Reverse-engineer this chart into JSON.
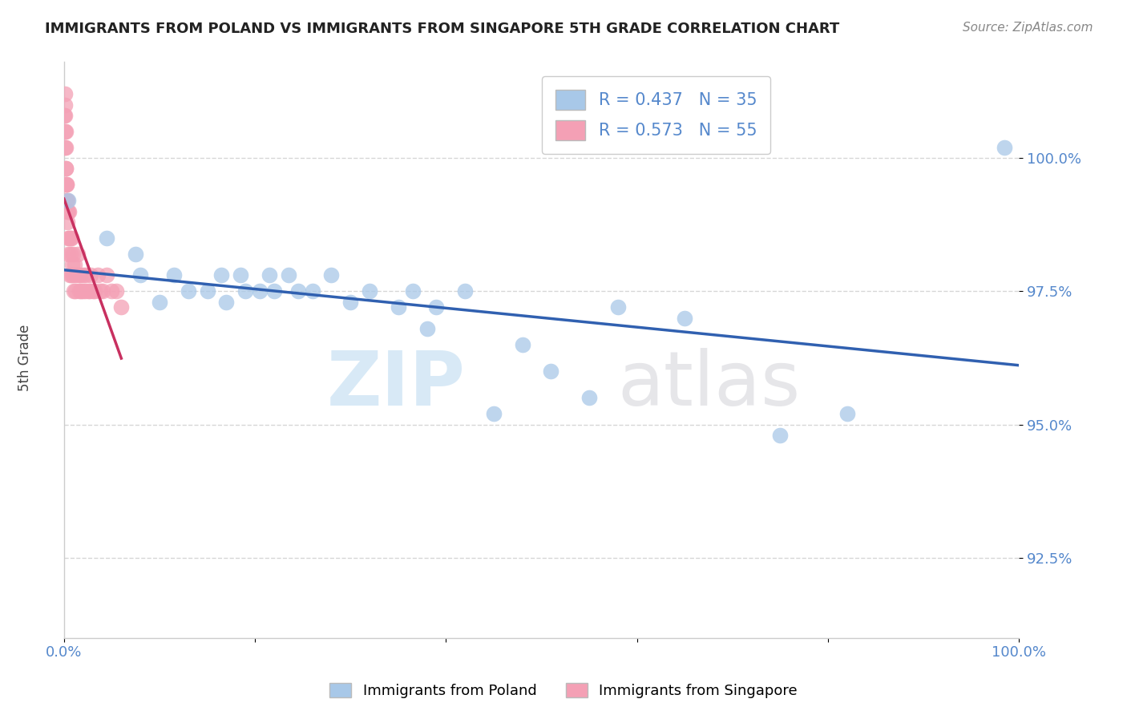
{
  "title": "IMMIGRANTS FROM POLAND VS IMMIGRANTS FROM SINGAPORE 5TH GRADE CORRELATION CHART",
  "source": "Source: ZipAtlas.com",
  "ylabel": "5th Grade",
  "xlim": [
    0.0,
    100.0
  ],
  "ylim": [
    91.0,
    101.8
  ],
  "yticks": [
    92.5,
    95.0,
    97.5,
    100.0
  ],
  "ytick_labels": [
    "92.5%",
    "95.0%",
    "97.5%",
    "100.0%"
  ],
  "xticks": [
    0.0,
    20.0,
    40.0,
    60.0,
    80.0,
    100.0
  ],
  "xtick_labels": [
    "0.0%",
    "",
    "",
    "",
    "",
    "100.0%"
  ],
  "poland_color": "#a8c8e8",
  "singapore_color": "#f4a0b5",
  "poland_R": 0.437,
  "poland_N": 35,
  "singapore_R": 0.573,
  "singapore_N": 55,
  "trend_line_color_poland": "#3060b0",
  "trend_line_color_singapore": "#c83060",
  "poland_x": [
    0.4,
    4.5,
    8.0,
    7.5,
    10.0,
    11.5,
    13.0,
    15.0,
    16.5,
    17.0,
    18.5,
    19.0,
    20.5,
    21.5,
    22.0,
    23.5,
    24.5,
    26.0,
    28.0,
    30.0,
    32.0,
    35.0,
    36.5,
    38.0,
    39.0,
    42.0,
    45.0,
    48.0,
    51.0,
    55.0,
    58.0,
    65.0,
    75.0,
    82.0,
    98.5
  ],
  "poland_y": [
    99.2,
    98.5,
    97.8,
    98.2,
    97.3,
    97.8,
    97.5,
    97.5,
    97.8,
    97.3,
    97.8,
    97.5,
    97.5,
    97.8,
    97.5,
    97.8,
    97.5,
    97.5,
    97.8,
    97.3,
    97.5,
    97.2,
    97.5,
    96.8,
    97.2,
    97.5,
    95.2,
    96.5,
    96.0,
    95.5,
    97.2,
    97.0,
    94.8,
    95.2,
    100.2
  ],
  "singapore_x": [
    0.05,
    0.08,
    0.1,
    0.1,
    0.12,
    0.13,
    0.15,
    0.15,
    0.18,
    0.2,
    0.22,
    0.25,
    0.28,
    0.3,
    0.32,
    0.35,
    0.38,
    0.4,
    0.42,
    0.45,
    0.5,
    0.55,
    0.6,
    0.65,
    0.7,
    0.75,
    0.8,
    0.85,
    0.9,
    0.95,
    1.0,
    1.1,
    1.2,
    1.3,
    1.4,
    1.5,
    1.6,
    1.7,
    1.8,
    1.9,
    2.0,
    2.2,
    2.3,
    2.5,
    2.7,
    2.8,
    3.0,
    3.2,
    3.5,
    3.8,
    4.0,
    4.5,
    5.0,
    5.5,
    6.0
  ],
  "singapore_y": [
    100.8,
    101.0,
    100.5,
    100.2,
    100.8,
    101.2,
    99.8,
    100.5,
    100.2,
    99.5,
    99.8,
    99.5,
    99.2,
    99.5,
    99.0,
    98.8,
    99.2,
    98.5,
    99.0,
    98.2,
    99.0,
    98.5,
    97.8,
    98.5,
    98.2,
    97.8,
    98.5,
    98.0,
    97.8,
    98.2,
    97.5,
    98.0,
    97.5,
    97.8,
    98.2,
    97.8,
    97.5,
    97.8,
    97.5,
    97.5,
    97.8,
    97.5,
    97.8,
    97.5,
    97.5,
    97.8,
    97.5,
    97.5,
    97.8,
    97.5,
    97.5,
    97.8,
    97.5,
    97.5,
    97.2
  ],
  "watermark_zip": "ZIP",
  "watermark_atlas": "atlas",
  "background_color": "#ffffff",
  "title_color": "#222222",
  "axis_label_color": "#5588cc",
  "grid_color": "#cccccc",
  "legend_text_color": "#5588cc"
}
